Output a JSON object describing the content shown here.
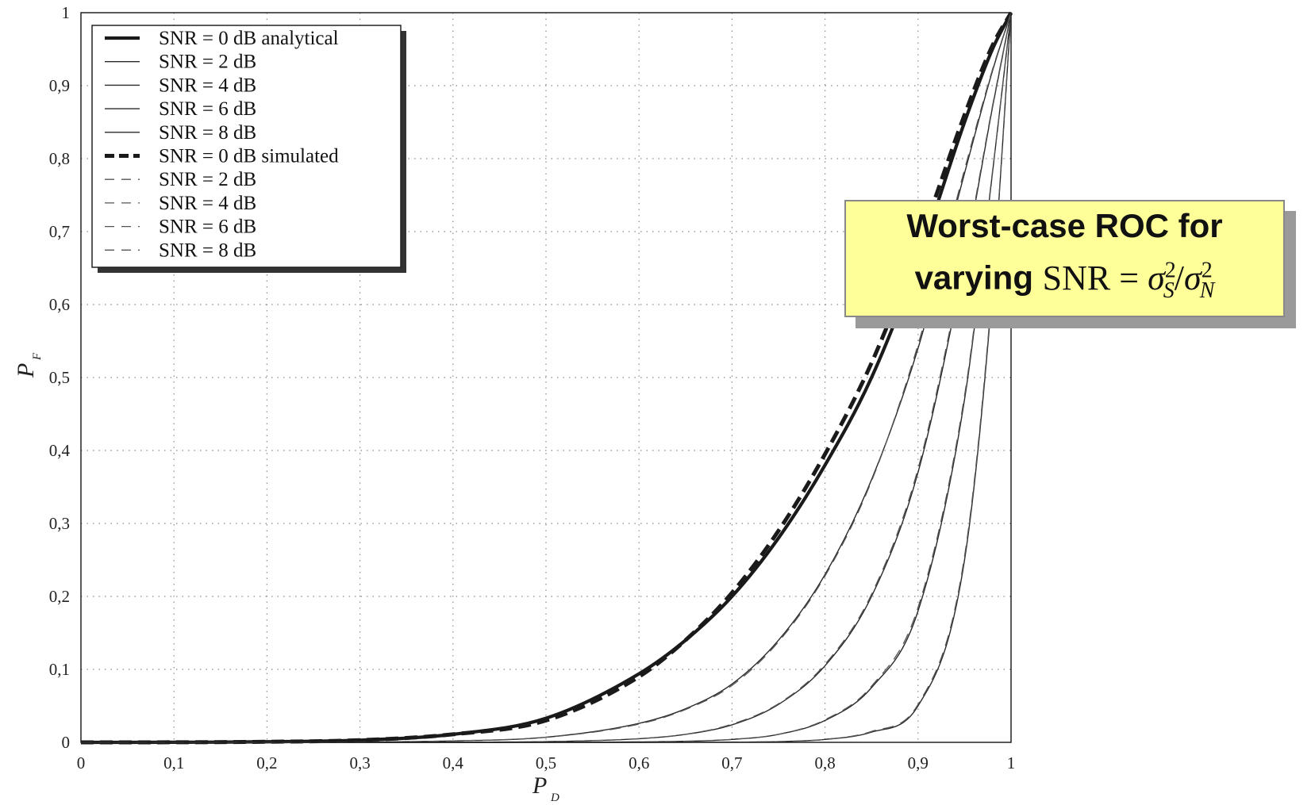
{
  "chart_data": {
    "type": "line",
    "xlabel": "P",
    "xlabel_sub": "D",
    "ylabel": "P",
    "ylabel_sub": "F",
    "xlim": [
      0,
      1
    ],
    "ylim": [
      0,
      1
    ],
    "xticks": [
      "0",
      "0,1",
      "0,2",
      "0,3",
      "0,4",
      "0,5",
      "0,6",
      "0,7",
      "0,8",
      "0,9",
      "1"
    ],
    "yticks": [
      "0",
      "0,1",
      "0,2",
      "0,3",
      "0,4",
      "0,5",
      "0,6",
      "0,7",
      "0,8",
      "0,9",
      "1"
    ],
    "grid": true,
    "legend_position": "top-left",
    "x": [
      0,
      0.1,
      0.2,
      0.3,
      0.4,
      0.5,
      0.6,
      0.65,
      0.7,
      0.75,
      0.8,
      0.85,
      0.9,
      0.95,
      0.98,
      1.0
    ],
    "series": [
      {
        "name": "SNR = 0 dB analytical",
        "style": "solid-thick",
        "values": [
          0,
          0.0001,
          0.0008,
          0.003,
          0.011,
          0.033,
          0.094,
          0.14,
          0.2,
          0.28,
          0.38,
          0.5,
          0.66,
          0.85,
          0.95,
          1.0
        ]
      },
      {
        "name": "SNR = 2 dB",
        "style": "solid-thin",
        "values": [
          0,
          0,
          0.0001,
          0.0004,
          0.002,
          0.007,
          0.026,
          0.046,
          0.08,
          0.14,
          0.23,
          0.36,
          0.54,
          0.78,
          0.92,
          1.0
        ]
      },
      {
        "name": "SNR = 4 dB",
        "style": "solid-thin",
        "values": [
          0,
          0,
          0,
          0,
          0.0002,
          0.001,
          0.005,
          0.011,
          0.024,
          0.052,
          0.105,
          0.2,
          0.37,
          0.66,
          0.87,
          1.0
        ]
      },
      {
        "name": "SNR = 6 dB",
        "style": "solid-thin",
        "values": [
          0,
          0,
          0,
          0,
          0,
          0.0001,
          0.0006,
          0.0015,
          0.004,
          0.011,
          0.03,
          0.075,
          0.18,
          0.47,
          0.78,
          1.0
        ]
      },
      {
        "name": "SNR = 8 dB",
        "style": "solid-thin",
        "values": [
          0,
          0,
          0,
          0,
          0,
          0,
          0,
          0.0001,
          0.0003,
          0.001,
          0.004,
          0.014,
          0.05,
          0.25,
          0.62,
          1.0
        ]
      },
      {
        "name": "SNR = 0 dB simulated",
        "style": "dashed-thick",
        "values": [
          0,
          0.0001,
          0.0008,
          0.003,
          0.011,
          0.03,
          0.09,
          0.14,
          0.205,
          0.29,
          0.395,
          0.52,
          0.68,
          0.86,
          0.955,
          1.0
        ]
      },
      {
        "name": "SNR = 2 dB",
        "style": "dashed-thin",
        "values": [
          0,
          0,
          0.0001,
          0.0004,
          0.002,
          0.007,
          0.025,
          0.045,
          0.078,
          0.138,
          0.228,
          0.358,
          0.545,
          0.785,
          0.922,
          1.0
        ]
      },
      {
        "name": "SNR = 4 dB",
        "style": "dashed-thin",
        "values": [
          0,
          0,
          0,
          0,
          0.0002,
          0.001,
          0.005,
          0.011,
          0.025,
          0.053,
          0.107,
          0.203,
          0.375,
          0.665,
          0.872,
          1.0
        ]
      },
      {
        "name": "SNR = 6 dB",
        "style": "dashed-thin",
        "values": [
          0,
          0,
          0,
          0,
          0,
          0.0001,
          0.0006,
          0.0015,
          0.004,
          0.011,
          0.031,
          0.077,
          0.185,
          0.475,
          0.782,
          1.0
        ]
      },
      {
        "name": "SNR = 8 dB",
        "style": "dashed-thin",
        "values": [
          0,
          0,
          0,
          0,
          0,
          0,
          0,
          0.0001,
          0.0003,
          0.001,
          0.004,
          0.015,
          0.052,
          0.255,
          0.625,
          1.0
        ]
      }
    ]
  },
  "callout": {
    "line1": "Worst-case ROC for",
    "line2_prefix": "varying",
    "snr_text": "SNR",
    "equals": "=",
    "sigma": "σ",
    "sup": "2",
    "sub_s": "S",
    "slash": "/",
    "sub_n": "N",
    "background": "#ffff99"
  }
}
